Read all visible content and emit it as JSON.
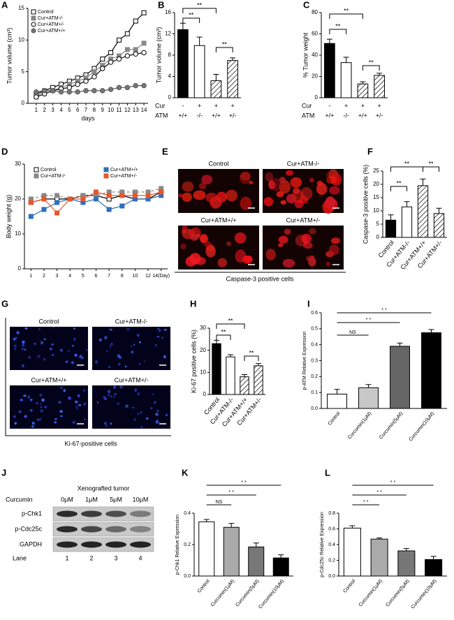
{
  "chart_data": [
    {
      "label": "A",
      "type": "line",
      "y_label": "Tumor volume (cm³)",
      "x_label": "days",
      "x": [
        1,
        2,
        3,
        4,
        5,
        6,
        7,
        8,
        9,
        10,
        11,
        12,
        13,
        14
      ],
      "xlim": [
        0,
        14.5
      ],
      "xticks": [
        1,
        2,
        3,
        4,
        5,
        6,
        7,
        8,
        9,
        10,
        11,
        12,
        13,
        14
      ],
      "ylim": [
        0,
        15
      ],
      "yticks": [
        0,
        5,
        10,
        15
      ],
      "legend": "top-left",
      "series": [
        {
          "name": "Control",
          "color": "#000000",
          "marker": "square",
          "marker_fill": "#ffffff",
          "values": [
            1.5,
            2,
            2.5,
            3,
            3.5,
            4,
            4.5,
            5.5,
            7,
            8,
            10,
            11,
            13,
            14.3
          ]
        },
        {
          "name": "Cur+ATM-/-",
          "color": "#888888",
          "marker": "square",
          "marker_fill": "#888888",
          "values": [
            1,
            2,
            2,
            2.5,
            3,
            3.5,
            4,
            5,
            6,
            7,
            7.5,
            8.5,
            8.5,
            9.5
          ]
        },
        {
          "name": "Cur+ATM+/-",
          "color": "#000000",
          "marker": "circle",
          "marker_fill": "#ffffff",
          "values": [
            1,
            1.5,
            2,
            2.3,
            2.5,
            3,
            3.5,
            4.2,
            5.5,
            6.5,
            7,
            7.5,
            7.8,
            8
          ]
        },
        {
          "name": "Cur+ATM+/+",
          "color": "#555555",
          "marker": "circle",
          "marker_fill": "#777777",
          "values": [
            1.8,
            2,
            2,
            1.8,
            1.8,
            1.8,
            2,
            2,
            2,
            2.2,
            2.5,
            2.5,
            2.8,
            2.8
          ]
        }
      ]
    },
    {
      "label": "B",
      "type": "bar",
      "y_label": "Tumor volume (cm³)",
      "category_rows": [
        {
          "name": "Cur",
          "values": [
            "-",
            "+",
            "+",
            "+"
          ]
        },
        {
          "name": "ATM",
          "values": [
            "+/+",
            "-/-",
            "+/+",
            "+/-"
          ]
        }
      ],
      "values": [
        12.8,
        9.8,
        3.2,
        7
      ],
      "errors": [
        1.2,
        1.6,
        1.2,
        0.5
      ],
      "bar_fills": [
        "#000000",
        "#ffffff",
        "hatch",
        "hatch"
      ],
      "ylim": [
        0,
        16
      ],
      "yticks": [
        0,
        4,
        8,
        12,
        16
      ],
      "annotations": [
        "**",
        "**",
        "**"
      ]
    },
    {
      "label": "C",
      "type": "bar",
      "y_label": "% Tumor weight",
      "category_rows": [
        {
          "name": "Cur",
          "values": [
            "-",
            "+",
            "+",
            "+"
          ]
        },
        {
          "name": "ATM",
          "values": [
            "+/+",
            "-/-",
            "+/+",
            "+/-"
          ]
        }
      ],
      "values": [
        51,
        33,
        13,
        21
      ],
      "errors": [
        4,
        5,
        2,
        2
      ],
      "bar_fills": [
        "#000000",
        "#ffffff",
        "hatch",
        "hatch"
      ],
      "ylim": [
        0,
        80
      ],
      "yticks": [
        0,
        20,
        40,
        60,
        80
      ],
      "annotations": [
        "**",
        "**",
        "**"
      ]
    },
    {
      "label": "D",
      "type": "line",
      "y_label": "Body weight (g)",
      "categories": [
        "1",
        "2",
        "3",
        "4",
        "5",
        "6",
        "7",
        "8",
        "10",
        "12",
        "14(Day)"
      ],
      "ylim": [
        0,
        30
      ],
      "yticks": [
        0,
        10,
        20,
        30
      ],
      "legend": "top",
      "series": [
        {
          "name": "Control",
          "color": "#000000",
          "marker": "square",
          "marker_fill": "#ffffff",
          "values": [
            19,
            20,
            20,
            20,
            21,
            21,
            20,
            21,
            20,
            20,
            22
          ]
        },
        {
          "name": "Cur+ATM-/-",
          "color": "#888888",
          "marker": "square",
          "marker_fill": "#888888",
          "dashed": true,
          "values": [
            20,
            21,
            21,
            20,
            21,
            21,
            22,
            22,
            22,
            22,
            23
          ]
        },
        {
          "name": "Cur+ATM+/+",
          "color": "#2e6fba",
          "marker": "square",
          "marker_fill": "#2e6fba",
          "values": [
            15,
            17,
            19,
            20,
            19,
            20,
            17,
            18,
            20,
            20,
            21
          ]
        },
        {
          "name": "Cur+ATM+/-",
          "color": "#e8552b",
          "marker": "square",
          "marker_fill": "#e8552b",
          "values": [
            19,
            20,
            16,
            20,
            20,
            22,
            21,
            21,
            21,
            21,
            22
          ]
        }
      ]
    },
    {
      "label": "F",
      "type": "bar",
      "y_label": "Caspase-3 positive cells (%)",
      "categories": [
        "Control",
        "Cur+ATM-/-",
        "Cur+ATM+/+",
        "Cur+ATM+/-"
      ],
      "values": [
        6.5,
        11.5,
        19.5,
        9
      ],
      "errors": [
        2,
        2,
        2.5,
        2
      ],
      "bar_fills": [
        "#000000",
        "#ffffff",
        "hatch",
        "hatch"
      ],
      "ylim": [
        0,
        25
      ],
      "yticks": [
        0,
        5,
        10,
        15,
        20,
        25
      ],
      "annotations": [
        "**",
        "**",
        "**"
      ]
    },
    {
      "label": "H",
      "type": "bar",
      "y_label": "Ki-67 positive cells (%)",
      "categories": [
        "Control",
        "Cur+ATM-/-",
        "Cur+ATM+/+",
        "Cur+ATM+/-"
      ],
      "values": [
        23,
        17,
        8,
        13
      ],
      "errors": [
        1.5,
        1,
        1,
        1
      ],
      "bar_fills": [
        "#000000",
        "#ffffff",
        "hatch",
        "hatch"
      ],
      "ylim": [
        0,
        30
      ],
      "yticks": [
        0,
        10,
        20,
        30
      ],
      "annotations": [
        "**",
        "**",
        "**"
      ]
    },
    {
      "label": "I",
      "type": "bar",
      "y_label": "p-ATM Relative Expression",
      "categories": [
        "Control",
        "Curcumin(1μM)",
        "Curcumin(5μM)",
        "Curcumin(10μM)"
      ],
      "values": [
        0.09,
        0.13,
        0.39,
        0.475
      ],
      "errors": [
        0.03,
        0.02,
        0.02,
        0.02
      ],
      "bar_fills": [
        "#ffffff",
        "#c8c8c8",
        "#666666",
        "#000000"
      ],
      "ylim": [
        0,
        0.6
      ],
      "yticks": [
        {
          "value": 0,
          "label": "0.0"
        },
        0.1,
        0.2,
        0.3,
        0.4,
        0.5,
        0.6
      ],
      "annotations": [
        "NS",
        "* *",
        "* *"
      ]
    },
    {
      "label": "K",
      "type": "bar",
      "y_label": "p-Chk1 Relative Expression",
      "categories": [
        "Control",
        "Curcumin(1μM)",
        "Curcumin(5μM)",
        "Curcumin(10μM)"
      ],
      "values": [
        0.345,
        0.31,
        0.185,
        0.115
      ],
      "errors": [
        0.015,
        0.025,
        0.025,
        0.02
      ],
      "bar_fills": [
        "#ffffff",
        "#aaaaaa",
        "#777777",
        "#000000"
      ],
      "ylim": [
        0,
        0.4
      ],
      "yticks": [
        {
          "value": 0,
          "label": "0.0"
        },
        0.2,
        0.4
      ],
      "annotations": [
        "NS",
        "* *",
        "* *"
      ]
    },
    {
      "label": "L",
      "type": "bar",
      "y_label": "p-Cdc25c Relative Expression",
      "categories": [
        "Control",
        "Curcumin(1μM)",
        "Curcumin(5μM)",
        "Curcumin(10μM)"
      ],
      "values": [
        0.61,
        0.47,
        0.32,
        0.21
      ],
      "errors": [
        0.03,
        0.015,
        0.03,
        0.04
      ],
      "bar_fills": [
        "#ffffff",
        "#aaaaaa",
        "#777777",
        "#000000"
      ],
      "ylim": [
        0,
        0.8
      ],
      "yticks": [
        {
          "value": 0,
          "label": "0.0"
        },
        0.2,
        0.4,
        0.6,
        0.8
      ],
      "annotations": [
        "* *",
        "* *",
        "* *"
      ]
    }
  ],
  "images": [
    {
      "label": "E",
      "tiles": [
        "Control",
        "Cur+ATM-/-",
        "Cur+ATM+/+",
        "Cur+ATM+/-"
      ],
      "caption": "Caspase-3 positive cells"
    },
    {
      "label": "G",
      "tiles": [
        "Control",
        "Cur+ATM-/-",
        "Cur+ATM+/+",
        "Cur+ATM+/-"
      ],
      "caption": "Ki-67-positive cells"
    }
  ],
  "blot": {
    "label": "J",
    "title": "Xenografted tumor",
    "dose_label": "Curcumin",
    "doses": [
      "0μM",
      "1μM",
      "5μM",
      "10μM"
    ],
    "rows": [
      "p-Chk1",
      "p-Cdc25c",
      "GAPDH"
    ],
    "lane_label": "Lane",
    "lanes": [
      "1",
      "2",
      "3",
      "4"
    ]
  }
}
